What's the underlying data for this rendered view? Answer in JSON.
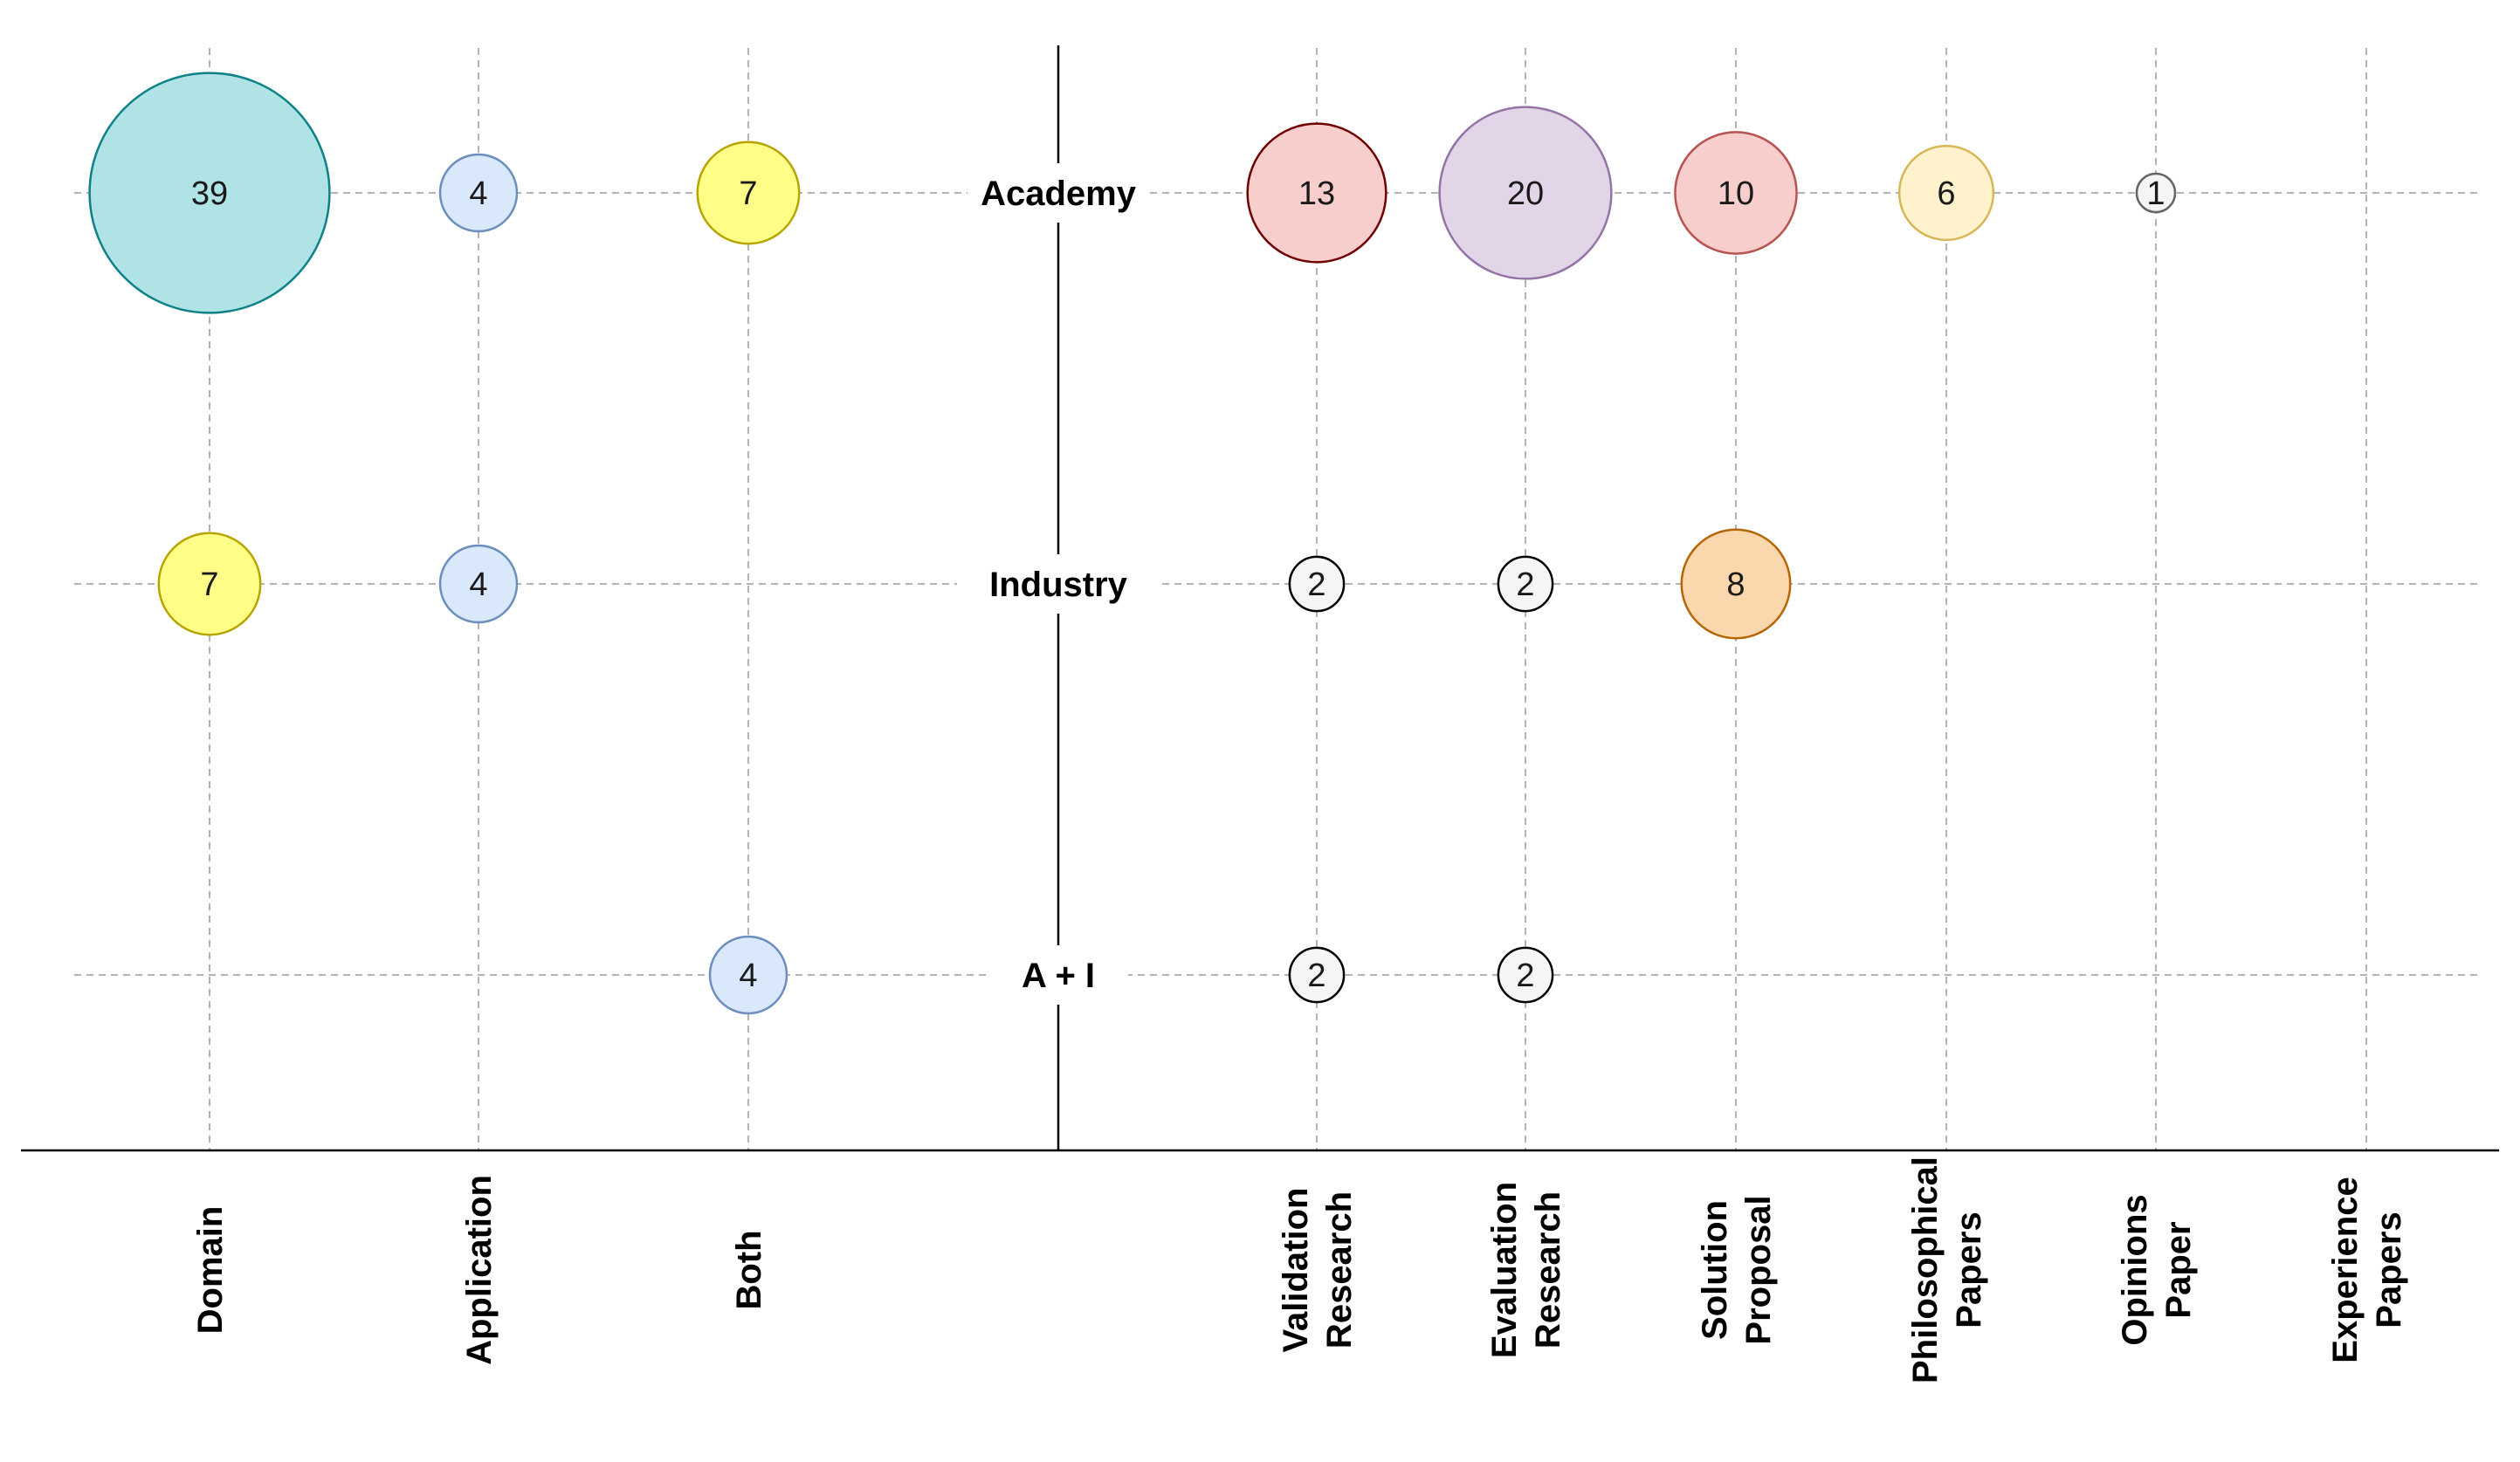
{
  "chart_data": {
    "type": "bubble-matrix",
    "title": "",
    "rows": [
      "Academy",
      "Industry",
      "A + I"
    ],
    "left_columns": [
      "Domain",
      "Application",
      "Both"
    ],
    "right_columns": [
      [
        "Validation",
        "Research"
      ],
      [
        "Evaluation",
        "Research"
      ],
      [
        "Solution",
        "Proposal"
      ],
      [
        "Philosophical",
        "Papers"
      ],
      [
        "Opinions",
        "Paper"
      ],
      [
        "Experience",
        "Papers"
      ]
    ],
    "bubbles": [
      {
        "side": "left",
        "col": 0,
        "row": 0,
        "value": 39,
        "fill": "#b0e3e6",
        "stroke": "#0e8088"
      },
      {
        "side": "left",
        "col": 1,
        "row": 0,
        "value": 4,
        "fill": "#dae8fc",
        "stroke": "#6c8ebf"
      },
      {
        "side": "left",
        "col": 2,
        "row": 0,
        "value": 7,
        "fill": "#ffff88",
        "stroke": "#b8a400"
      },
      {
        "side": "left",
        "col": 0,
        "row": 1,
        "value": 7,
        "fill": "#ffff88",
        "stroke": "#b8a400"
      },
      {
        "side": "left",
        "col": 1,
        "row": 1,
        "value": 4,
        "fill": "#dae8fc",
        "stroke": "#6c8ebf"
      },
      {
        "side": "left",
        "col": 2,
        "row": 2,
        "value": 4,
        "fill": "#dae8fc",
        "stroke": "#6c8ebf"
      },
      {
        "side": "right",
        "col": 0,
        "row": 0,
        "value": 13,
        "fill": "#f8cecc",
        "stroke": "#6f0000"
      },
      {
        "side": "right",
        "col": 1,
        "row": 0,
        "value": 20,
        "fill": "#e1d5e7",
        "stroke": "#9673a6"
      },
      {
        "side": "right",
        "col": 2,
        "row": 0,
        "value": 10,
        "fill": "#f8cecc",
        "stroke": "#b85450"
      },
      {
        "side": "right",
        "col": 3,
        "row": 0,
        "value": 6,
        "fill": "#fff2cc",
        "stroke": "#d6b656"
      },
      {
        "side": "right",
        "col": 4,
        "row": 0,
        "value": 1,
        "fill": "#f5f5f5",
        "stroke": "#666666"
      },
      {
        "side": "right",
        "col": 0,
        "row": 1,
        "value": 2,
        "fill": "#f5f5f5",
        "stroke": "#000000"
      },
      {
        "side": "right",
        "col": 1,
        "row": 1,
        "value": 2,
        "fill": "#f5f5f5",
        "stroke": "#000000"
      },
      {
        "side": "right",
        "col": 2,
        "row": 1,
        "value": 8,
        "fill": "#fad7ac",
        "stroke": "#b46504"
      },
      {
        "side": "right",
        "col": 0,
        "row": 2,
        "value": 2,
        "fill": "#f5f5f5",
        "stroke": "#000000"
      },
      {
        "side": "right",
        "col": 1,
        "row": 2,
        "value": 2,
        "fill": "#f5f5f5",
        "stroke": "#000000"
      }
    ]
  }
}
